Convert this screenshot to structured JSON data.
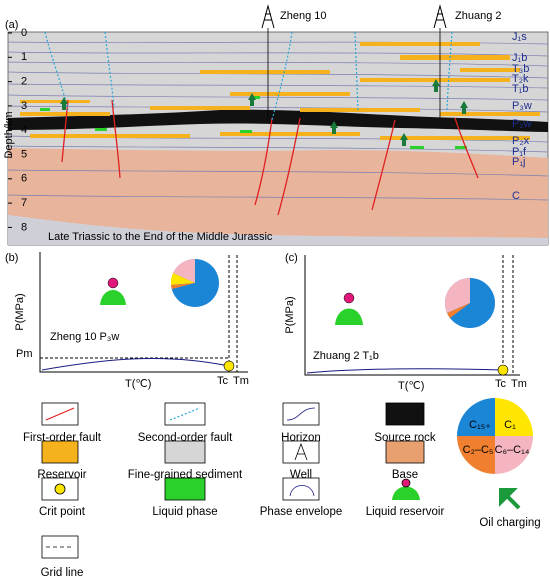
{
  "panel_a": {
    "label": "(a)",
    "wells": [
      "Zheng 10",
      "Zhuang 2"
    ],
    "y_axis_title": "Depth/km",
    "depth_ticks": [
      "0",
      "1",
      "2",
      "3",
      "4",
      "5",
      "6",
      "7",
      "8"
    ],
    "formations": [
      "J₁s",
      "J₁b",
      "T₃b",
      "T₂k",
      "T₁b",
      "P₃w",
      "P₂w",
      "P₂x",
      "P₁f",
      "P₁j",
      "C"
    ],
    "caption": "Late Triassic to the End of the Middle Jurassic"
  },
  "panel_b": {
    "label": "(b)",
    "y_axis_title": "P(MPa)",
    "x_axis_title": "T(℃)",
    "sample": "Zheng 10 P₃w",
    "pm": "Pm",
    "tc": "Tc",
    "tm": "Tm"
  },
  "panel_c": {
    "label": "(c)",
    "y_axis_title": "P(MPa)",
    "x_axis_title": "T(℃)",
    "sample": "Zhuang 2 T₁b",
    "tc": "Tc",
    "tm": "Tm"
  },
  "legend": {
    "items": [
      "First-order fault",
      "Second-order fault",
      "Horizon",
      "Source rock",
      "Reservoir",
      "Fine-grained sediment",
      "Well",
      "Base",
      "Crit point",
      "Liquid phase",
      "Phase envelope",
      "Liquid reservoir",
      "Grid line"
    ],
    "pie_labels": [
      "C₁₅₊",
      "C₁",
      "C₂–C₅",
      "C₆–C₁₄"
    ],
    "oil_charging": "Oil charging"
  }
}
